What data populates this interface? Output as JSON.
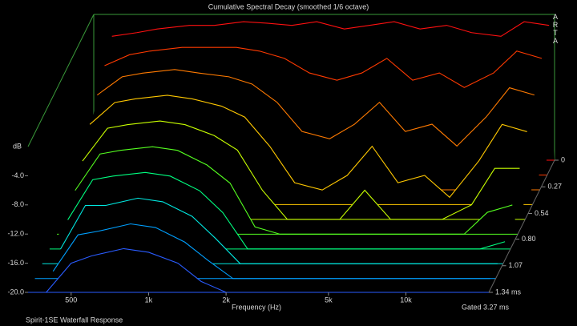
{
  "chart_data": {
    "type": "waterfall",
    "title": "Cumulative Spectral Decay (smoothed 1/6 octave)",
    "brand": "ARTA",
    "xlabel": "Frequency (Hz)",
    "ylabel": "dB",
    "gate_note": "Gated 3.27 ms",
    "caption": "Spirit-1SE Waterfall Response",
    "xlog": true,
    "x": [
      400,
      500,
      600,
      800,
      1000,
      1300,
      1600,
      2000,
      2500,
      3200,
      4000,
      5000,
      6300,
      8000,
      10000,
      13000,
      16000,
      20000
    ],
    "xlim": [
      340,
      21000
    ],
    "xticks": [
      500,
      {
        "value": 1000,
        "label": "1k"
      },
      {
        "value": 2000,
        "label": "2k"
      },
      {
        "value": 5000,
        "label": "5k"
      },
      {
        "value": 10000,
        "label": "10k"
      }
    ],
    "ylim": [
      -20,
      0
    ],
    "yticks": [
      {
        "value": -20,
        "label": "-20.0"
      },
      {
        "value": -16,
        "label": "-16.0"
      },
      {
        "value": -12,
        "label": "-12.0"
      },
      {
        "value": -8,
        "label": "-8.0"
      },
      {
        "value": -4,
        "label": "-4.0"
      }
    ],
    "zlim": [
      0,
      1.34
    ],
    "zticks": [
      0,
      0.27,
      0.54,
      {
        "value": 0.8,
        "label": "0.80"
      },
      1.07,
      {
        "value": 1.34,
        "label": "1.34 ms"
      }
    ],
    "series": [
      {
        "z": 0,
        "color": "#ff1010",
        "values": [
          -3,
          -2.5,
          -2,
          -1.5,
          -1.5,
          -1,
          -1.2,
          -1.5,
          -1,
          -2,
          -1.5,
          -1,
          -2,
          -1.5,
          -2.5,
          -3,
          -1,
          -1.5
        ]
      },
      {
        "z": 0.15,
        "color": "#ff3a00",
        "values": [
          -5,
          -3.5,
          -3,
          -2.5,
          -2.5,
          -2.5,
          -3,
          -4,
          -6,
          -7,
          -6,
          -4,
          -7,
          -6,
          -8,
          -6,
          -3,
          -4
        ]
      },
      {
        "z": 0.3,
        "color": "#ff7a00",
        "values": [
          -7,
          -4.5,
          -4,
          -3.5,
          -4,
          -4.5,
          -5.5,
          -8,
          -12,
          -13,
          -11,
          -8,
          -12,
          -11,
          -14,
          -10,
          -6,
          -7
        ]
      },
      {
        "z": 0.45,
        "color": "#ffc800",
        "values": [
          -9,
          -6,
          -5.5,
          -5,
          -5.5,
          -6.5,
          -8,
          -12,
          -17,
          -18,
          -16,
          -12,
          -17,
          -16,
          -19,
          -14,
          -9,
          -10
        ]
      },
      {
        "z": 0.6,
        "color": "#c8ff00",
        "values": [
          -12,
          -7.5,
          -7,
          -6.5,
          -7,
          -8.5,
          -10.5,
          -16,
          -20,
          -20,
          -20,
          -16,
          -20,
          -20,
          -20,
          -18,
          -13,
          -13
        ]
      },
      {
        "z": 0.75,
        "color": "#55ff20",
        "values": [
          -14,
          -9,
          -8.5,
          -8,
          -8.5,
          -10.5,
          -13,
          -19,
          -20,
          -20,
          -20,
          -20,
          -20,
          -20,
          -20,
          -20,
          -17,
          -16
        ]
      },
      {
        "z": 0.9,
        "color": "#00ff80",
        "values": [
          -16,
          -10.5,
          -10,
          -9.5,
          -10,
          -12,
          -15,
          -20,
          -20,
          -20,
          -20,
          -20,
          -20,
          -20,
          -20,
          -20,
          -20,
          -19
        ]
      },
      {
        "z": 1.05,
        "color": "#00e8e0",
        "values": [
          -18,
          -12,
          -12,
          -11,
          -11.5,
          -13.5,
          -16.5,
          -20,
          -20,
          -20,
          -20,
          -20,
          -20,
          -20,
          -20,
          -20,
          -20,
          -20
        ]
      },
      {
        "z": 1.2,
        "color": "#00a0ff",
        "values": [
          -19,
          -14,
          -13.5,
          -12.5,
          -13,
          -15,
          -17.5,
          -20,
          -20,
          -20,
          -20,
          -20,
          -20,
          -20,
          -20,
          -20,
          -20,
          -20
        ]
      },
      {
        "z": 1.34,
        "color": "#2a5cff",
        "values": [
          -20,
          -16,
          -15,
          -14,
          -14.5,
          -16,
          -18.5,
          -20,
          -20,
          -20,
          -20,
          -20,
          -20,
          -20,
          -20,
          -20,
          -20,
          -20
        ]
      }
    ]
  }
}
